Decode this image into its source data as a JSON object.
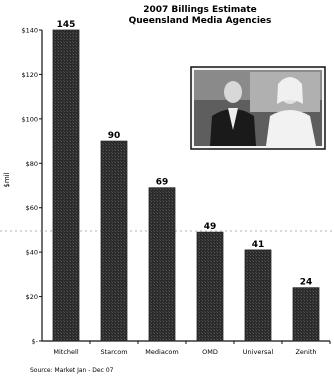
{
  "chart_data": {
    "type": "bar",
    "title_line1": "2007 Billings Estimate",
    "title_line2": "Queensland Media Agencies",
    "ylabel": "$mil",
    "xlabel": "",
    "categories": [
      "Mitchell",
      "Starcom",
      "Mediacom",
      "OMD",
      "Universal",
      "Zenith"
    ],
    "values": [
      145,
      90,
      69,
      49,
      41,
      24
    ],
    "value_labels": [
      "145",
      "90",
      "69",
      "49",
      "41",
      "24"
    ],
    "ylim": [
      0,
      140
    ],
    "yticks": [
      0,
      20,
      40,
      60,
      80,
      100,
      120,
      140
    ],
    "ytick_labels": [
      "$-",
      "$20",
      "$40",
      "$60",
      "$80",
      "$100",
      "$120",
      "$140"
    ],
    "source": "Source: Market Jan - Dec 07",
    "grid": false,
    "bar_color": "#2a2a2a",
    "dashed_line_color": "#9a9a9a"
  },
  "inset_photo": {
    "icon": "people-photo-icon"
  }
}
